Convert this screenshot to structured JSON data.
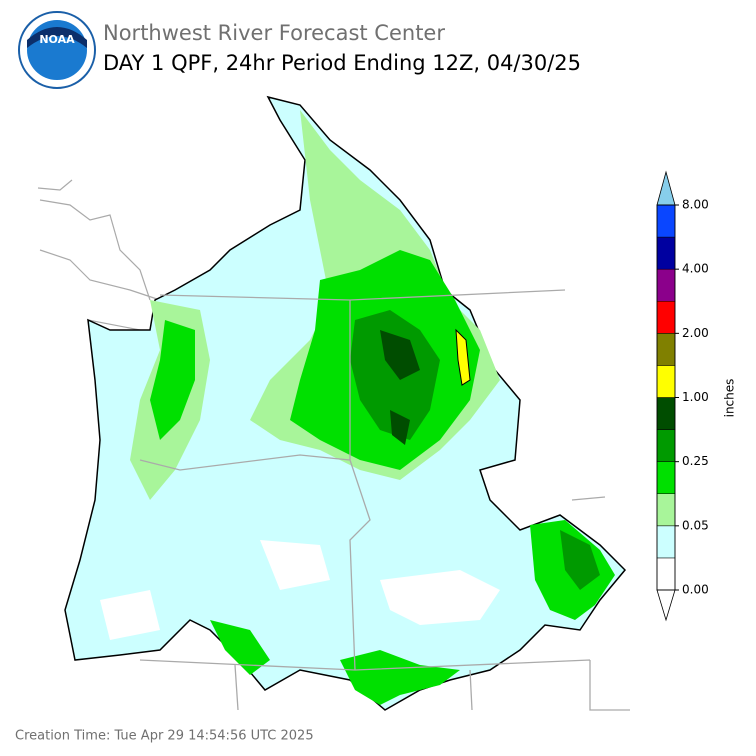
{
  "header": {
    "subtitle": "Northwest River Forecast Center",
    "title": "DAY 1 QPF, 24hr Period Ending 12Z, 04/30/25"
  },
  "logo": {
    "text": "NOAA"
  },
  "legend": {
    "unit": "inches",
    "ticks": [
      "0.00",
      "0.05",
      "0.25",
      "1.00",
      "2.00",
      "4.00",
      "8.00"
    ],
    "under_color": "#ffffff",
    "over_color": "#87ceeb",
    "colors": [
      "#ffffff",
      "#ccffff",
      "#a8f59a",
      "#00e000",
      "#009a00",
      "#004d00",
      "#ffff00",
      "#808000",
      "#ff0000",
      "#8b008b",
      "#0000a0",
      "#0a46ff"
    ]
  },
  "footer": {
    "creation_time": "Creation Time: Tue Apr 29 14:54:56 UTC 2025"
  }
}
